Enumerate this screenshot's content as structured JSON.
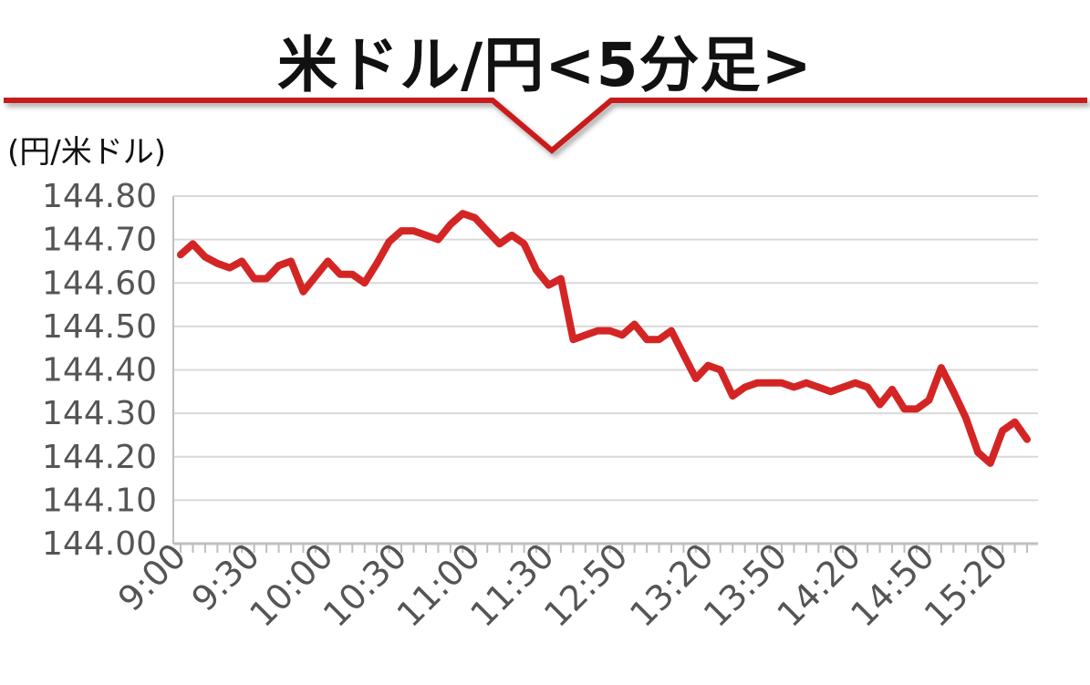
{
  "chart_data": {
    "type": "line",
    "title": "米ドル/円<5分足>",
    "ylabel": "(円/米ドル)",
    "xlabel": "",
    "ylim": [
      144.0,
      144.8
    ],
    "yticks": [
      "144.80",
      "144.70",
      "144.60",
      "144.50",
      "144.40",
      "144.30",
      "144.20",
      "144.10",
      "144.00"
    ],
    "grid": true,
    "x_tick_labels": [
      "9:00",
      "9:30",
      "10:00",
      "10:30",
      "11:00",
      "11:30",
      "12:50",
      "13:20",
      "13:50",
      "14:20",
      "14:50",
      "15:20"
    ],
    "series": [
      {
        "color": "#d42525",
        "values": [
          144.665,
          144.69,
          144.66,
          144.645,
          144.635,
          144.65,
          144.61,
          144.61,
          144.64,
          144.65,
          144.58,
          144.615,
          144.65,
          144.62,
          144.62,
          144.6,
          144.645,
          144.695,
          144.72,
          144.72,
          144.71,
          144.7,
          144.735,
          144.76,
          144.75,
          144.72,
          144.69,
          144.71,
          144.69,
          144.63,
          144.595,
          144.61,
          144.47,
          144.48,
          144.49,
          144.49,
          144.48,
          144.505,
          144.47,
          144.47,
          144.49,
          144.435,
          144.38,
          144.41,
          144.4,
          144.34,
          144.36,
          144.37,
          144.37,
          144.37,
          144.36,
          144.37,
          144.36,
          144.35,
          144.36,
          144.37,
          144.36,
          144.32,
          144.355,
          144.31,
          144.31,
          144.33,
          144.405,
          144.35,
          144.29,
          144.21,
          144.185,
          144.26,
          144.28,
          144.24
        ]
      }
    ]
  },
  "colors": {
    "accent": "#c81e1e",
    "grid": "#d9d9d9",
    "axis": "#bfbfbf",
    "text": "#555555"
  }
}
